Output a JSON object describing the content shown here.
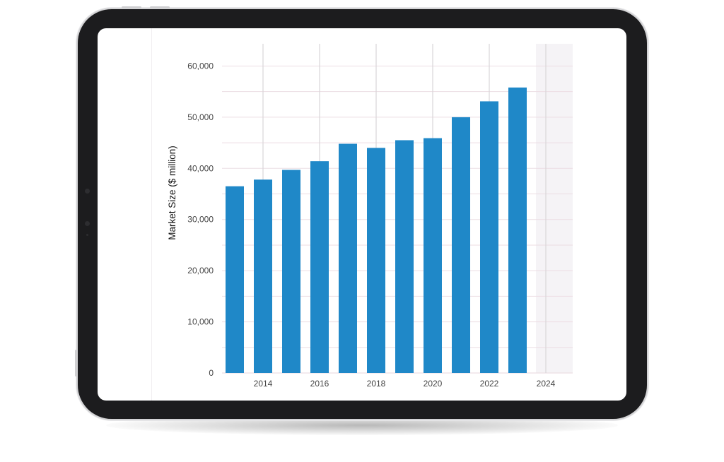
{
  "chart_data": {
    "type": "bar",
    "title": "",
    "xlabel": "",
    "ylabel": "Market Size ($ million)",
    "x": [
      2013,
      2014,
      2015,
      2016,
      2017,
      2018,
      2019,
      2020,
      2021,
      2022,
      2023
    ],
    "values": [
      36500,
      37800,
      39700,
      41400,
      44800,
      44000,
      45500,
      45900,
      50000,
      53100,
      55800
    ],
    "xlim": [
      2012.5,
      2024.5
    ],
    "ylim": [
      0,
      66000
    ],
    "x_ticks": [
      2014,
      2016,
      2018,
      2020,
      2022,
      2024
    ],
    "x_tick_labels": [
      "2014",
      "2016",
      "2018",
      "2020",
      "2022",
      "2024"
    ],
    "y_ticks": [
      0,
      10000,
      20000,
      30000,
      40000,
      50000,
      60000
    ],
    "y_tick_labels": [
      "0",
      "10,000",
      "20,000",
      "30,000",
      "40,000",
      "50,000",
      "60,000"
    ],
    "grid": true,
    "bar_color": "#1f88c8",
    "forecast_shade_color": "#f5f3f6",
    "gridline_color": "#ecdde3"
  }
}
